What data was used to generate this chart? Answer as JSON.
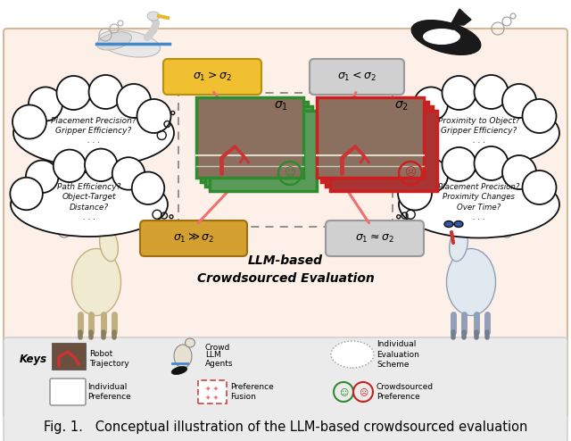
{
  "bg_color": "#ffffff",
  "main_panel_facecolor": "#fdf0e8",
  "main_panel_edge": "#d4b898",
  "keys_panel_facecolor": "#ebebeb",
  "keys_panel_edge": "#cccccc",
  "title_text": "Fig. 1.   Conceptual illustration of the LLM-based crowdsourced evaluation",
  "title_fontsize": 10.5,
  "sigma1_gt_sigma2": "$\\sigma_1 > \\sigma_2$",
  "sigma1_lt_sigma2": "$\\sigma_1 < \\sigma_2$",
  "sigma1_gg_sigma2": "$\\sigma_1 \\gg \\sigma_2$",
  "sigma1_approx_sigma2": "$\\sigma_1 \\approx \\sigma_2$",
  "llm_label": "LLM-based\nCrowdsourced Evaluation",
  "cloud_ul_text": "Placement Precision?\nGripper Efficiency?\n. . .",
  "cloud_ll_text": "Path Efficiency?\nObject-Target\nDistance?\n. . .",
  "cloud_ur_text": "Proximity to Object?\nGripper Efficiency?\n. . .",
  "cloud_lr_text": "Placement Precision?\nProximity Changes\nOver Time?\n. . .",
  "sigma1_label": "$\\sigma_1$",
  "sigma2_label": "$\\sigma_2$",
  "green_color": "#2e8b2e",
  "red_color": "#cc2020",
  "yellow_color": "#f0c030",
  "tan_color": "#c89030",
  "gray_color": "#b0b0b0",
  "pink_arrow": "#f07070",
  "dash_color": "#888888",
  "blue_color": "#4488cc",
  "black": "#111111",
  "robot_bg": "#8b7355"
}
